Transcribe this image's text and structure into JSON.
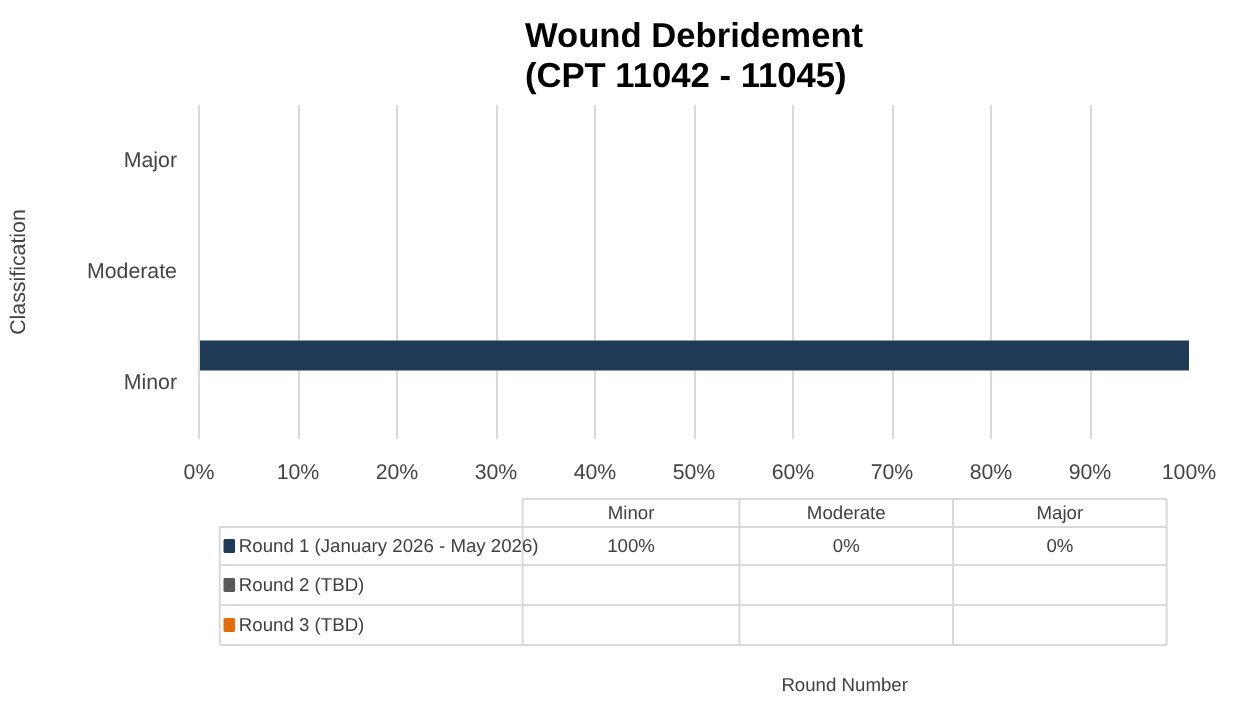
{
  "chart_data": {
    "type": "bar",
    "orientation": "horizontal",
    "title": "Wound Debridement\n(CPT 11042 - 11045)",
    "ylabel": "Classification",
    "annotations": [
      "Round Number",
      "100%",
      "0%",
      "0%"
    ],
    "categories": [
      "Major",
      "Moderate",
      "Minor"
    ],
    "series": [
      {
        "name": "Round 1 (January 2026 - May 2026)",
        "color": "#1f3a56",
        "values": [
          0,
          0,
          100
        ]
      },
      {
        "name": "Round 2 (TBD)",
        "color": "#595959",
        "values": [
          null,
          null,
          null
        ]
      },
      {
        "name": "Round 3 (TBD)",
        "color": "#e46c0a",
        "values": [
          null,
          null,
          null
        ]
      }
    ],
    "xlim": [
      0,
      100
    ],
    "xticks": [
      {
        "value": 0,
        "label": "0%"
      },
      {
        "value": 10,
        "label": "10%"
      },
      {
        "value": 20,
        "label": "20%"
      },
      {
        "value": 30,
        "label": "30%"
      },
      {
        "value": 40,
        "label": "40%"
      },
      {
        "value": 50,
        "label": "50%"
      },
      {
        "value": 60,
        "label": "60%"
      },
      {
        "value": 70,
        "label": "70%"
      },
      {
        "value": 80,
        "label": "80%"
      },
      {
        "value": 90,
        "label": "90%"
      },
      {
        "value": 100,
        "label": "100%"
      }
    ],
    "grid": "x"
  }
}
